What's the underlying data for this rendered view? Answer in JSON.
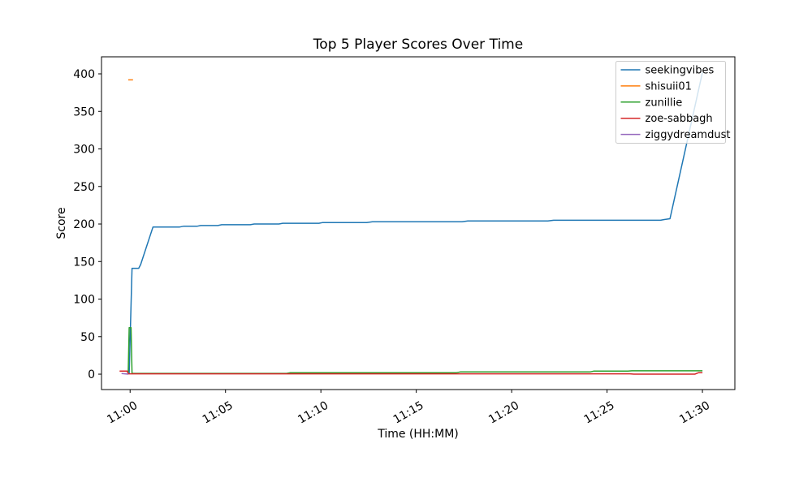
{
  "chart_data": {
    "type": "line",
    "title": "Top 5 Player Scores Over Time",
    "xlabel": "Time (HH:MM)",
    "ylabel": "Score",
    "x_unit": "minutes after 11:00",
    "xlim": [
      -1.5,
      31.7
    ],
    "ylim": [
      -20.5,
      422.7
    ],
    "grid": false,
    "x_axis": {
      "tick_minutes": [
        0,
        5,
        10,
        15,
        20,
        25,
        30
      ],
      "tick_labels": [
        "11:00",
        "11:05",
        "11:10",
        "11:15",
        "11:20",
        "11:25",
        "11:30"
      ],
      "label_rotation_deg": 30
    },
    "y_ticks": [
      0,
      50,
      100,
      150,
      200,
      250,
      300,
      350,
      400
    ],
    "legend": {
      "position": "upper right",
      "entries": [
        "seekingvibes",
        "shisuii01",
        "zunillie",
        "zoe-sabbagh",
        "ziggydreamdust"
      ]
    },
    "series": [
      {
        "name": "seekingvibes",
        "color": "#1f77b4",
        "points": [
          [
            -0.05,
            1
          ],
          [
            0.1,
            141
          ],
          [
            0.45,
            141
          ],
          [
            0.55,
            146
          ],
          [
            1.2,
            196
          ],
          [
            2.6,
            196
          ],
          [
            2.8,
            197
          ],
          [
            3.5,
            197
          ],
          [
            3.7,
            198
          ],
          [
            4.6,
            198
          ],
          [
            4.8,
            199
          ],
          [
            6.3,
            199
          ],
          [
            6.5,
            200
          ],
          [
            7.8,
            200
          ],
          [
            8.0,
            201
          ],
          [
            9.9,
            201
          ],
          [
            10.1,
            202
          ],
          [
            12.4,
            202
          ],
          [
            12.7,
            203
          ],
          [
            17.4,
            203
          ],
          [
            17.7,
            204
          ],
          [
            21.9,
            204
          ],
          [
            22.2,
            205
          ],
          [
            27.8,
            205
          ],
          [
            28.0,
            206
          ],
          [
            28.3,
            207
          ],
          [
            30,
            402
          ]
        ]
      },
      {
        "name": "shisuii01",
        "color": "#ff7f0e",
        "points": [
          [
            -0.1,
            392
          ],
          [
            0.15,
            392
          ]
        ]
      },
      {
        "name": "zunillie",
        "color": "#2ca02c",
        "points": [
          [
            -0.1,
            2
          ],
          [
            -0.05,
            62
          ],
          [
            0.05,
            62
          ],
          [
            0.1,
            1
          ],
          [
            8.2,
            1
          ],
          [
            8.4,
            2
          ],
          [
            17.1,
            2
          ],
          [
            17.3,
            3
          ],
          [
            24.1,
            3
          ],
          [
            24.3,
            4
          ],
          [
            26.1,
            4
          ],
          [
            26.3,
            4.5
          ],
          [
            30,
            4.5
          ]
        ]
      },
      {
        "name": "zoe-sabbagh",
        "color": "#d62728",
        "points": [
          [
            -0.55,
            4
          ],
          [
            -0.15,
            4
          ],
          [
            -0.1,
            0.5
          ],
          [
            26.2,
            0.5
          ],
          [
            26.4,
            0
          ],
          [
            29.6,
            0
          ],
          [
            29.8,
            2
          ],
          [
            30,
            2
          ]
        ]
      },
      {
        "name": "ziggydreamdust",
        "color": "#9467bd",
        "points": [
          [
            -0.45,
            0.8
          ],
          [
            -0.1,
            0
          ]
        ]
      }
    ]
  },
  "colors": {
    "background": "#ffffff",
    "frame": "#000000",
    "legend_border": "#cccccc",
    "legend_fill": "#ffffff"
  }
}
